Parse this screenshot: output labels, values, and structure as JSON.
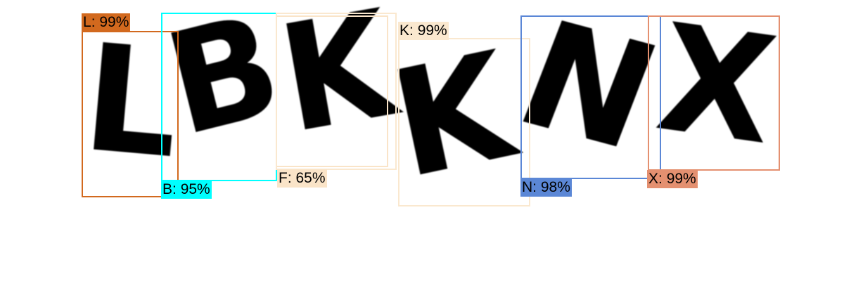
{
  "image": {
    "glyphs": [
      "L",
      "B",
      "K",
      "K",
      "N",
      "X"
    ]
  },
  "detections": [
    {
      "label": "L",
      "score": "99%",
      "color": "#d2691e"
    },
    {
      "label": "B",
      "score": "95%",
      "color": "#00ffff"
    },
    {
      "label": "F",
      "score": "65%",
      "color": "#fae4c8"
    },
    {
      "label": "K",
      "score": "99%",
      "color": "#fae8cf"
    },
    {
      "label": "N",
      "score": "98%",
      "color": "#5b87d6"
    },
    {
      "label": "X",
      "score": "99%",
      "color": "#e49070"
    }
  ]
}
